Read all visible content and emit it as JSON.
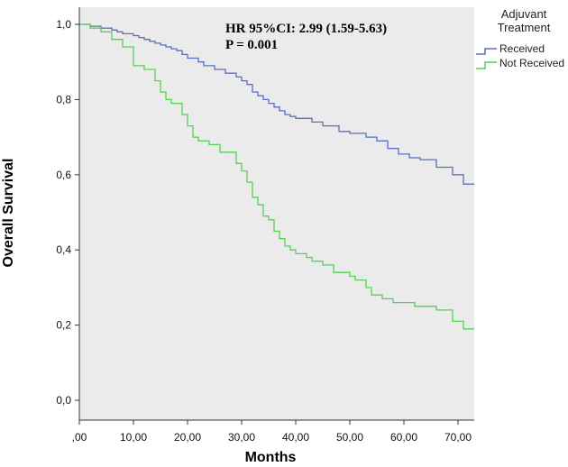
{
  "chart_data": {
    "type": "line",
    "step": true,
    "xlabel": "Months",
    "ylabel": "Overall Survival",
    "xlim": [
      0,
      73
    ],
    "ylim": [
      0,
      1.0
    ],
    "x_ticks": [
      ",00",
      "10,00",
      "20,00",
      "30,00",
      "40,00",
      "50,00",
      "60,00",
      "70,00"
    ],
    "y_ticks": [
      "0,0",
      "0,2",
      "0,4",
      "0,6",
      "0,8",
      "1,0"
    ],
    "grid": false,
    "background": "#ebebeb",
    "annotations": [
      "HR 95%CI: 2.99 (1.59-5.63)",
      "P = 0.001"
    ],
    "legend_title_lines": [
      "Adjuvant",
      "Treatment"
    ],
    "legend_position": "outside-top-right",
    "series": [
      {
        "name": "Received",
        "color": "#5a6fc4",
        "x": [
          0,
          2,
          4,
          6,
          7,
          8,
          10,
          11,
          12,
          13,
          14,
          15,
          16,
          17,
          18,
          19,
          20,
          22,
          23,
          25,
          27,
          29,
          30,
          31,
          32,
          33,
          34,
          35,
          36,
          37,
          38,
          39,
          40,
          43,
          45,
          48,
          50,
          53,
          55,
          57,
          59,
          61,
          63,
          66,
          69,
          71,
          73
        ],
        "values": [
          1.0,
          0.995,
          0.99,
          0.985,
          0.98,
          0.975,
          0.97,
          0.965,
          0.96,
          0.955,
          0.95,
          0.945,
          0.94,
          0.935,
          0.93,
          0.92,
          0.91,
          0.9,
          0.89,
          0.88,
          0.87,
          0.86,
          0.85,
          0.84,
          0.82,
          0.81,
          0.8,
          0.79,
          0.78,
          0.77,
          0.76,
          0.755,
          0.75,
          0.74,
          0.73,
          0.715,
          0.71,
          0.7,
          0.69,
          0.67,
          0.655,
          0.645,
          0.64,
          0.62,
          0.6,
          0.575,
          0.575
        ]
      },
      {
        "name": "Not Received",
        "color": "#55d155",
        "x": [
          0,
          2,
          4,
          6,
          8,
          10,
          12,
          14,
          15,
          16,
          17,
          19,
          20,
          21,
          22,
          24,
          26,
          29,
          30,
          31,
          32,
          33,
          34,
          35,
          36,
          37,
          38,
          39,
          40,
          42,
          43,
          45,
          47,
          50,
          51,
          53,
          54,
          56,
          58,
          62,
          66,
          69,
          71,
          73
        ],
        "values": [
          1.0,
          0.99,
          0.98,
          0.96,
          0.94,
          0.89,
          0.88,
          0.85,
          0.82,
          0.8,
          0.79,
          0.76,
          0.73,
          0.7,
          0.69,
          0.68,
          0.66,
          0.63,
          0.61,
          0.58,
          0.54,
          0.52,
          0.49,
          0.48,
          0.45,
          0.43,
          0.41,
          0.4,
          0.39,
          0.38,
          0.37,
          0.36,
          0.34,
          0.33,
          0.32,
          0.3,
          0.28,
          0.27,
          0.26,
          0.25,
          0.24,
          0.21,
          0.19,
          0.19
        ]
      }
    ]
  }
}
